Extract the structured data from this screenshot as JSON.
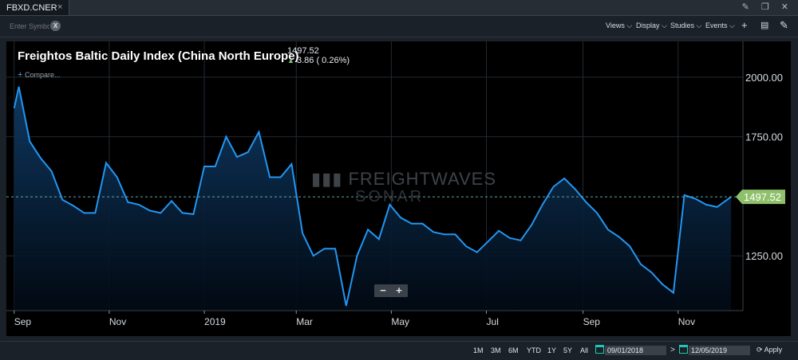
{
  "tab": {
    "label": "FBXD.CNER",
    "close": "×"
  },
  "window_icons": "✎ ❐ ✕",
  "toolbar": {
    "symbol_placeholder": "Enter Symbol",
    "clear": "X",
    "views": "Views ⌵",
    "display": "Display ⌵",
    "studies": "Studies ⌵",
    "events": "Events ⌵",
    "add_icon": "+",
    "comment_icon": "▤",
    "draw_icon": "✎"
  },
  "header": {
    "title": "Freightos Baltic Daily Index (China North Europe)",
    "last_value": "1497.52",
    "change_arrow": "▲",
    "change": "3.86 ( 0.26%)",
    "compare_plus": "+",
    "compare": "Compare..."
  },
  "watermark": {
    "bars": "▮▮▮",
    "main": "FREIGHTWAVES",
    "sub": "SONAR"
  },
  "zoom": {
    "minus": "−",
    "plus": "+"
  },
  "range": {
    "buttons": [
      "1M",
      "3M",
      "6M",
      "YTD",
      "1Y",
      "5Y",
      "All"
    ],
    "start_date": "09/01/2018",
    "arrow": ">",
    "end_date": "12/05/2019",
    "apply": "Apply"
  },
  "colors": {
    "line": "#2196f3",
    "last_tag": "#8fc06b",
    "background": "#000000"
  },
  "chart_data": {
    "type": "area",
    "title": "Freightos Baltic Daily Index (China North Europe)",
    "xlabel": "",
    "ylabel": "",
    "ylim": [
      1020,
      2150
    ],
    "y_ticks": [
      "1250.00",
      "1750.00",
      "2000.00"
    ],
    "y_tick_values": [
      1250,
      1750,
      2000
    ],
    "x_ticks": [
      "Sep",
      "Nov",
      "2019",
      "Mar",
      "May",
      "Jul",
      "Sep",
      "Nov"
    ],
    "x_tick_dates": [
      "2018-09-01",
      "2018-11-01",
      "2019-01-01",
      "2019-03-01",
      "2019-05-01",
      "2019-07-01",
      "2019-09-01",
      "2019-11-01"
    ],
    "last_value_label": "1497.52",
    "last_value": 1497.52,
    "grid": true,
    "series": [
      {
        "x": [
          "2018-09-01",
          "2018-09-04",
          "2018-09-11",
          "2018-09-18",
          "2018-09-25",
          "2018-10-02",
          "2018-10-09",
          "2018-10-16",
          "2018-10-23",
          "2018-10-30",
          "2018-11-06",
          "2018-11-13",
          "2018-11-20",
          "2018-11-27",
          "2018-12-04",
          "2018-12-11",
          "2018-12-18",
          "2018-12-25",
          "2019-01-01",
          "2019-01-08",
          "2019-01-15",
          "2019-01-22",
          "2019-01-29",
          "2019-02-05",
          "2019-02-12",
          "2019-02-19",
          "2019-02-26",
          "2019-03-05",
          "2019-03-12",
          "2019-03-19",
          "2019-03-26",
          "2019-04-02",
          "2019-04-09",
          "2019-04-16",
          "2019-04-23",
          "2019-04-30",
          "2019-05-07",
          "2019-05-14",
          "2019-05-21",
          "2019-05-28",
          "2019-06-04",
          "2019-06-11",
          "2019-06-18",
          "2019-06-25",
          "2019-07-02",
          "2019-07-09",
          "2019-07-16",
          "2019-07-23",
          "2019-07-30",
          "2019-08-06",
          "2019-08-13",
          "2019-08-20",
          "2019-08-27",
          "2019-09-03",
          "2019-09-10",
          "2019-09-17",
          "2019-09-24",
          "2019-10-01",
          "2019-10-08",
          "2019-10-15",
          "2019-10-22",
          "2019-10-29",
          "2019-11-05",
          "2019-11-12",
          "2019-11-19",
          "2019-11-26",
          "2019-12-05"
        ],
        "values": [
          1870,
          1960,
          1730,
          1660,
          1605,
          1485,
          1460,
          1430,
          1430,
          1640,
          1580,
          1475,
          1465,
          1440,
          1430,
          1480,
          1430,
          1425,
          1625,
          1625,
          1750,
          1665,
          1685,
          1770,
          1580,
          1580,
          1635,
          1345,
          1250,
          1280,
          1280,
          1040,
          1250,
          1360,
          1320,
          1465,
          1410,
          1385,
          1385,
          1350,
          1340,
          1340,
          1290,
          1265,
          1310,
          1355,
          1325,
          1315,
          1380,
          1465,
          1540,
          1575,
          1530,
          1475,
          1430,
          1360,
          1330,
          1290,
          1215,
          1180,
          1130,
          1095,
          1505,
          1490,
          1465,
          1455,
          1497.52
        ]
      }
    ]
  }
}
